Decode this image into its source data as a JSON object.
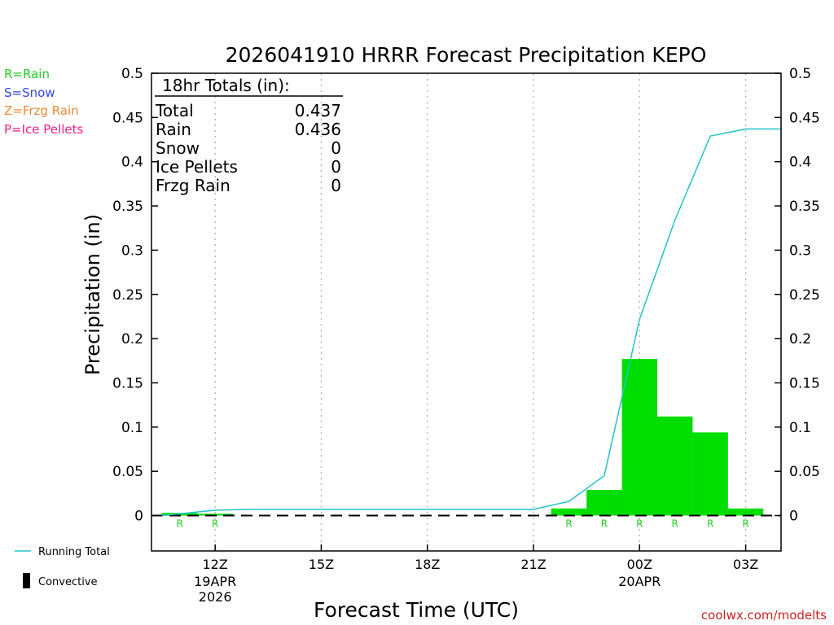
{
  "chart_data": {
    "type": "bar",
    "title": "2026041910 HRRR Forecast Precipitation KEPO",
    "xlabel": "Forecast Time (UTC)",
    "ylabel": "Precipitation (in)",
    "ylim": [
      -0.04,
      0.5
    ],
    "y_ticks": [
      "0.5",
      "0.45",
      "0.4",
      "0.35",
      "0.3",
      "0.25",
      "0.2",
      "0.15",
      "0.1",
      "0.05",
      "0"
    ],
    "x_ticks": [
      {
        "label": "12Z",
        "sub1": "19APR",
        "sub2": "2026",
        "hour": 12
      },
      {
        "label": "15Z",
        "sub1": "",
        "sub2": "",
        "hour": 15
      },
      {
        "label": "18Z",
        "sub1": "",
        "sub2": "",
        "hour": 18
      },
      {
        "label": "21Z",
        "sub1": "",
        "sub2": "",
        "hour": 21
      },
      {
        "label": "00Z",
        "sub1": "20APR",
        "sub2": "",
        "hour": 24
      },
      {
        "label": "03Z",
        "sub1": "",
        "sub2": "",
        "hour": 27
      }
    ],
    "xlim_hours": [
      10.2,
      28.0
    ],
    "bars": [
      {
        "hour": 11,
        "value": 0.003,
        "type": "R"
      },
      {
        "hour": 12,
        "value": 0.002,
        "type": "R"
      },
      {
        "hour": 13,
        "value": 0.0,
        "type": ""
      },
      {
        "hour": 14,
        "value": 0.0,
        "type": ""
      },
      {
        "hour": 15,
        "value": 0.0,
        "type": ""
      },
      {
        "hour": 16,
        "value": 0.0,
        "type": ""
      },
      {
        "hour": 17,
        "value": 0.0,
        "type": ""
      },
      {
        "hour": 18,
        "value": 0.0,
        "type": ""
      },
      {
        "hour": 19,
        "value": 0.0,
        "type": ""
      },
      {
        "hour": 20,
        "value": 0.0,
        "type": ""
      },
      {
        "hour": 21,
        "value": 0.0,
        "type": ""
      },
      {
        "hour": 22,
        "value": 0.008,
        "type": "R"
      },
      {
        "hour": 23,
        "value": 0.029,
        "type": "R"
      },
      {
        "hour": 24,
        "value": 0.177,
        "type": "R"
      },
      {
        "hour": 25,
        "value": 0.112,
        "type": "R"
      },
      {
        "hour": 26,
        "value": 0.094,
        "type": "R"
      },
      {
        "hour": 27,
        "value": 0.008,
        "type": "R"
      }
    ],
    "running_total": {
      "name": "Running Total",
      "hours": [
        10.5,
        11.5,
        12,
        13,
        14,
        15,
        16,
        17,
        18,
        19,
        20,
        21,
        22,
        23,
        24,
        25,
        26,
        27,
        28
      ],
      "values": [
        0.0,
        0.004,
        0.006,
        0.007,
        0.007,
        0.007,
        0.007,
        0.007,
        0.007,
        0.007,
        0.007,
        0.007,
        0.016,
        0.045,
        0.222,
        0.334,
        0.429,
        0.437,
        0.437
      ]
    },
    "colors": {
      "rain_bar": "#00dd00",
      "running_total": "#22c5cc",
      "rain": "#22cc22",
      "snow": "#3344ee",
      "frzg_rain": "#ee8833",
      "ice_pellets": "#ee2288",
      "grid": "#b0b0b0"
    },
    "grid": "vertical dotted",
    "legend_placement": "left"
  },
  "totals_box": {
    "heading": "18hr Totals (in):",
    "rows": [
      {
        "label": "Total",
        "value": "0.437"
      },
      {
        "label": "Rain",
        "value": "0.436"
      },
      {
        "label": "Snow",
        "value": "0"
      },
      {
        "label": "Ice Pellets",
        "value": "0"
      },
      {
        "label": "Frzg Rain",
        "value": "0"
      }
    ]
  },
  "type_key": [
    {
      "label": "R=Rain",
      "color": "#22cc22"
    },
    {
      "label": "S=Snow",
      "color": "#3344ee"
    },
    {
      "label": "Z=Frzg Rain",
      "color": "#ee8833"
    },
    {
      "label": "P=Ice Pellets",
      "color": "#ee2288"
    }
  ],
  "legend": {
    "running_total_label": "Running Total",
    "convective_label": "Convective"
  },
  "credit": "coolwx.com/modelts"
}
